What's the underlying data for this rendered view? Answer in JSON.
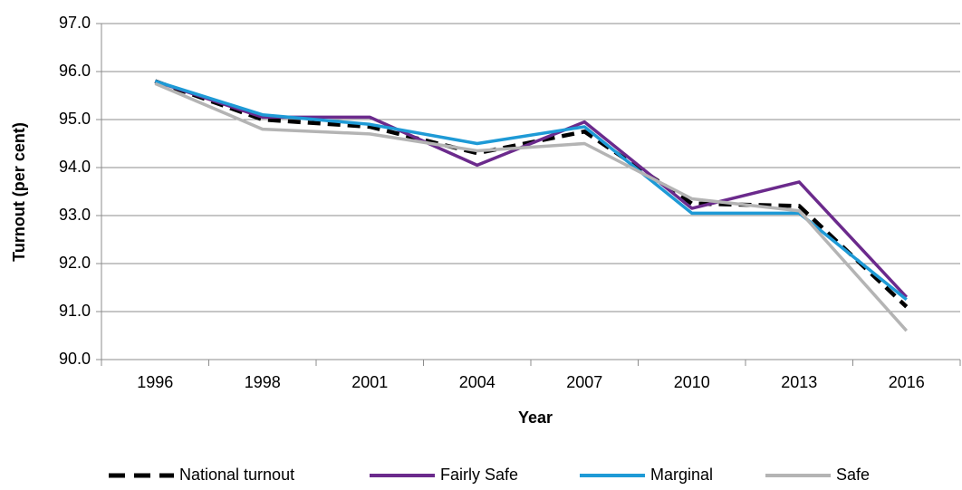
{
  "chart_data": {
    "type": "line",
    "x_label": "Year",
    "y_label": "Turnout (per cent)",
    "categories": [
      "1996",
      "1998",
      "2001",
      "2004",
      "2007",
      "2010",
      "2013",
      "2016"
    ],
    "series": [
      {
        "name": "National turnout",
        "color": "#000000",
        "dashed": true,
        "values": [
          95.8,
          95.0,
          94.85,
          94.3,
          94.75,
          93.25,
          93.2,
          91.1
        ]
      },
      {
        "name": "Fairly Safe",
        "color": "#6b2a8c",
        "values": [
          95.8,
          95.05,
          95.05,
          94.05,
          94.95,
          93.15,
          93.7,
          91.3
        ]
      },
      {
        "name": "Marginal",
        "color": "#1e9ad6",
        "values": [
          95.8,
          95.1,
          94.9,
          94.5,
          94.85,
          93.05,
          93.05,
          91.25
        ]
      },
      {
        "name": "Safe",
        "color": "#b4b4b4",
        "values": [
          95.75,
          94.8,
          94.7,
          94.35,
          94.5,
          93.35,
          93.1,
          90.6
        ]
      }
    ],
    "ylim": [
      90,
      97
    ],
    "yticks": [
      {
        "value": 90,
        "label": "90.0"
      },
      {
        "value": 91,
        "label": "91.0"
      },
      {
        "value": 92,
        "label": "92.0"
      },
      {
        "value": 93,
        "label": "93.0"
      },
      {
        "value": 94,
        "label": "94.0"
      },
      {
        "value": 95,
        "label": "95.0"
      },
      {
        "value": 96,
        "label": "96.0"
      },
      {
        "value": 97,
        "label": "97.0"
      }
    ],
    "grid": true,
    "legend": "bottom"
  }
}
